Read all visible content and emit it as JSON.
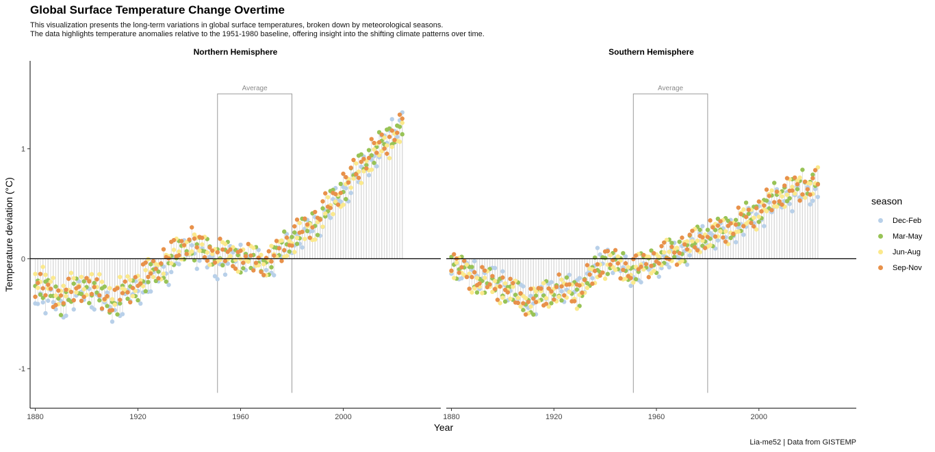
{
  "title": "Global Surface Temperature Change Overtime",
  "subtitle_line1": "This visualization presents the long-term variations in global surface temperatures, broken down by meteorological seasons.",
  "subtitle_line2": "The data highlights temperature anomalies relative to the 1951-1980 baseline, offering insight into the shifting climate patterns over time.",
  "caption": "Lia-me52 | Data from GISTEMP",
  "chart_data": {
    "type": "scatter",
    "xlabel": "Year",
    "ylabel": "Temperature deviation (°C)",
    "x_ticks": [
      1880,
      1920,
      1960,
      2000
    ],
    "y_ticks": [
      -1,
      0,
      1
    ],
    "xlim": [
      1878,
      2038
    ],
    "ylim": [
      -1.36,
      1.8
    ],
    "grid": false,
    "legend_title": "season",
    "legend_position": "right",
    "series": [
      {
        "name": "Dec-Feb",
        "color": "#b8d0e9"
      },
      {
        "name": "Mar-May",
        "color": "#98c356"
      },
      {
        "name": "Jun-Aug",
        "color": "#fbe98c"
      },
      {
        "name": "Sep-Nov",
        "color": "#e8914a"
      }
    ],
    "baseline_annotation": {
      "label": "Average",
      "x_start": 1951,
      "x_end": 1980,
      "y_top": 1.5,
      "y_bottom": -1.22
    },
    "panels": [
      {
        "name": "Northern Hemisphere",
        "years": [
          1880,
          1890,
          1900,
          1910,
          1920,
          1930,
          1940,
          1950,
          1960,
          1970,
          1980,
          1990,
          2000,
          2010,
          2023
        ],
        "series_values": {
          "Dec-Feb": [
            -0.33,
            -0.45,
            -0.3,
            -0.48,
            -0.3,
            -0.15,
            0.1,
            -0.1,
            0.05,
            -0.1,
            0.15,
            0.3,
            0.6,
            0.85,
            1.3
          ],
          "Mar-May": [
            -0.22,
            -0.38,
            -0.25,
            -0.42,
            -0.26,
            -0.1,
            0.12,
            0.05,
            0.0,
            -0.05,
            0.2,
            0.35,
            0.65,
            0.95,
            1.22
          ],
          "Jun-Aug": [
            -0.15,
            -0.3,
            -0.2,
            -0.32,
            -0.2,
            -0.05,
            0.15,
            0.05,
            0.02,
            -0.02,
            0.15,
            0.3,
            0.6,
            0.88,
            1.15
          ],
          "Sep-Nov": [
            -0.25,
            -0.35,
            -0.25,
            -0.4,
            -0.2,
            0.0,
            0.18,
            0.05,
            0.02,
            -0.05,
            0.2,
            0.38,
            0.68,
            0.95,
            1.2
          ]
        }
      },
      {
        "name": "Southern Hemisphere",
        "years": [
          1880,
          1890,
          1900,
          1910,
          1920,
          1930,
          1940,
          1950,
          1960,
          1970,
          1980,
          1990,
          2000,
          2010,
          2023
        ],
        "series_values": {
          "Dec-Feb": [
            -0.05,
            -0.15,
            -0.2,
            -0.4,
            -0.3,
            -0.25,
            0.05,
            -0.15,
            -0.05,
            0.05,
            0.2,
            0.25,
            0.4,
            0.55,
            0.6
          ],
          "Mar-May": [
            -0.02,
            -0.2,
            -0.25,
            -0.42,
            -0.28,
            -0.3,
            0.0,
            -0.1,
            0.0,
            0.1,
            0.22,
            0.3,
            0.45,
            0.62,
            0.75
          ],
          "Jun-Aug": [
            -0.05,
            -0.22,
            -0.28,
            -0.38,
            -0.3,
            -0.32,
            -0.05,
            -0.12,
            0.0,
            0.08,
            0.2,
            0.28,
            0.42,
            0.6,
            0.7
          ],
          "Sep-Nov": [
            -0.05,
            -0.18,
            -0.25,
            -0.4,
            -0.28,
            -0.28,
            0.0,
            -0.1,
            0.0,
            0.1,
            0.22,
            0.3,
            0.45,
            0.62,
            0.68
          ]
        }
      }
    ]
  }
}
